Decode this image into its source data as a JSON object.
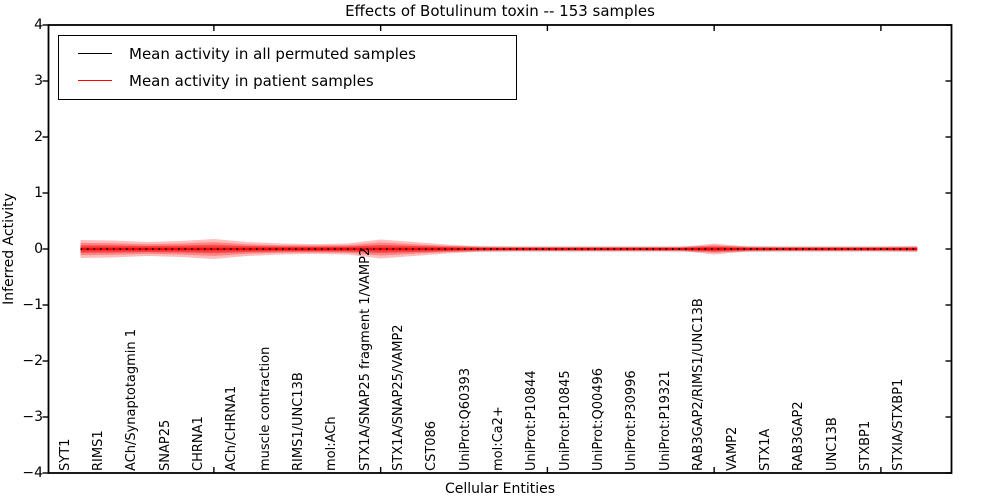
{
  "figure": {
    "background": "#ffffff",
    "frame_color": "#000000"
  },
  "legend": {
    "position": "upper left",
    "items": [
      {
        "label": "Mean activity in all permuted samples",
        "color": "#000000",
        "style": "dotted"
      },
      {
        "label": "Mean activity in patient samples",
        "color": "#ff0000",
        "style": "solid"
      }
    ]
  },
  "chart_data": {
    "type": "line",
    "title": "Effects of Botulinum toxin -- 153 samples",
    "xlabel": "Cellular Entities",
    "ylabel": "Inferred Activity",
    "ylim": [
      -4,
      4
    ],
    "yticks": [
      4,
      3,
      2,
      1,
      0,
      -1,
      -2,
      -3,
      -4
    ],
    "ytick_labels": [
      "4",
      "3",
      "2",
      "1",
      "0",
      "−1",
      "−2",
      "−3",
      "−4"
    ],
    "grid": false,
    "legend_position": "upper left",
    "top_axis_ticks_at_positions": [
      5,
      10,
      15,
      20,
      25
    ],
    "categories": [
      "SYT1",
      "RIMS1",
      "ACh/Synaptotagmin 1",
      "SNAP25",
      "CHRNA1",
      "ACh/CHRNA1",
      "muscle contraction",
      "RIMS1/UNC13B",
      "mol:ACh",
      "STX1A/SNAP25 fragment 1/VAMP2",
      "STX1A/SNAP25/VAMP2",
      "CST086",
      "UniProt:Q60393",
      "mol:Ca2+",
      "UniProt:P10844",
      "UniProt:P10845",
      "UniProt:Q00496",
      "UniProt:P30996",
      "UniProt:P19321",
      "RAB3GAP2/RIMS1/UNC13B",
      "VAMP2",
      "STX1A",
      "RAB3GAP2",
      "UNC13B",
      "STXBP1",
      "STXIA/STXBP1"
    ],
    "series": [
      {
        "name": "Mean activity in all permuted samples",
        "color": "#000000",
        "style": "dotted",
        "values": [
          0,
          0,
          0,
          0,
          0,
          0,
          0,
          0,
          0,
          0,
          0,
          0,
          0,
          0,
          0,
          0,
          0,
          0,
          0,
          0,
          0,
          0,
          0,
          0,
          0,
          0
        ]
      },
      {
        "name": "Mean activity in patient samples",
        "color": "#ff0000",
        "style": "solid",
        "values": [
          0,
          0,
          0,
          0,
          0,
          0,
          0,
          0,
          0,
          0,
          0,
          0,
          0,
          0,
          0,
          0,
          0,
          0,
          0,
          0,
          0,
          0,
          0,
          0,
          0,
          0
        ]
      }
    ],
    "patient_band": {
      "color": "#ff0000",
      "halfwidth": [
        0.161,
        0.152,
        0.125,
        0.143,
        0.179,
        0.125,
        0.098,
        0.089,
        0.098,
        0.17,
        0.125,
        0.08,
        0.045,
        0.036,
        0.036,
        0.036,
        0.036,
        0.036,
        0.036,
        0.098,
        0.045,
        0.036,
        0.036,
        0.036,
        0.036,
        0.045
      ]
    },
    "permuted_band": {
      "color": "#999999",
      "halfwidth": 0.055
    }
  }
}
